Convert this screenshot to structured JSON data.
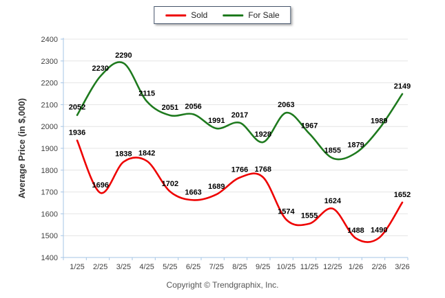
{
  "chart_data": {
    "type": "line",
    "title": "",
    "categories": [
      "1/25",
      "2/25",
      "3/25",
      "4/25",
      "5/25",
      "6/25",
      "7/25",
      "8/25",
      "9/25",
      "10/25",
      "11/25",
      "12/25",
      "1/26",
      "2/26",
      "3/26"
    ],
    "series": [
      {
        "name": "Sold",
        "color": "#ee0000",
        "values": [
          1936,
          1696,
          1838,
          1842,
          1702,
          1663,
          1689,
          1766,
          1768,
          1574,
          1555,
          1624,
          1488,
          1490,
          1652
        ]
      },
      {
        "name": "For Sale",
        "color": "#1e7a1e",
        "values": [
          2052,
          2230,
          2290,
          2115,
          2051,
          2056,
          1991,
          2017,
          1928,
          2063,
          1967,
          1855,
          1879,
          1989,
          2149
        ]
      }
    ],
    "xlabel": "",
    "ylabel": "Average Price (in $,000)",
    "ylim": [
      1400,
      2400
    ],
    "ytick_step": 100,
    "grid": true,
    "smooth": true,
    "legend_position": "top-center",
    "data_labels": true
  },
  "colors": {
    "axis": "#a6c5e5",
    "grid": "#e4e4e4",
    "tick_label": "#404040",
    "data_label": "#000000",
    "axis_title": "#333333",
    "legend_border": "#44546a"
  },
  "footer": {
    "copyright": "Copyright © Trendgraphix, Inc."
  }
}
